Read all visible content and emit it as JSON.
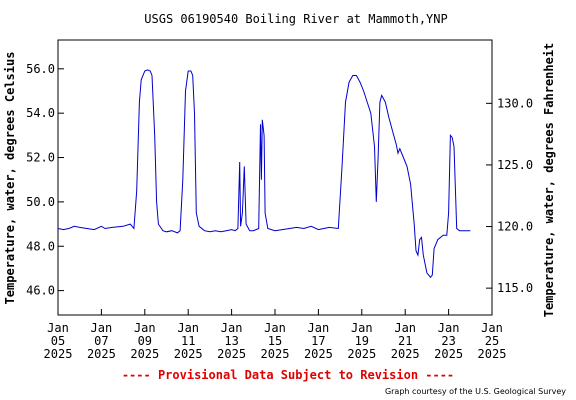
{
  "chart_data": {
    "type": "line",
    "title": "USGS 06190540 Boiling River at Mammoth,YNP",
    "ylabel_left": "Temperature, water, degrees Celsius",
    "ylabel_right": "Temperature, water, degrees Fahrenheit",
    "left_ylim": [
      44.9,
      57.3
    ],
    "right_ticks": [
      {
        "value": 115.0,
        "label": "115.0"
      },
      {
        "value": 120.0,
        "label": "120.0"
      },
      {
        "value": 125.0,
        "label": "125.0"
      },
      {
        "value": 130.0,
        "label": "130.0"
      }
    ],
    "left_ticks": [
      {
        "value": 46.0,
        "label": "46.0"
      },
      {
        "value": 48.0,
        "label": "48.0"
      },
      {
        "value": 50.0,
        "label": "50.0"
      },
      {
        "value": 52.0,
        "label": "52.0"
      },
      {
        "value": 54.0,
        "label": "54.0"
      },
      {
        "value": 56.0,
        "label": "56.0"
      }
    ],
    "xlim": [
      "2025-01-05",
      "2025-01-25"
    ],
    "x_ticks": [
      {
        "date": "2025-01-05",
        "month": "Jan",
        "day": "05",
        "year": "2025"
      },
      {
        "date": "2025-01-07",
        "month": "Jan",
        "day": "07",
        "year": "2025"
      },
      {
        "date": "2025-01-09",
        "month": "Jan",
        "day": "09",
        "year": "2025"
      },
      {
        "date": "2025-01-11",
        "month": "Jan",
        "day": "11",
        "year": "2025"
      },
      {
        "date": "2025-01-13",
        "month": "Jan",
        "day": "13",
        "year": "2025"
      },
      {
        "date": "2025-01-15",
        "month": "Jan",
        "day": "15",
        "year": "2025"
      },
      {
        "date": "2025-01-17",
        "month": "Jan",
        "day": "17",
        "year": "2025"
      },
      {
        "date": "2025-01-19",
        "month": "Jan",
        "day": "19",
        "year": "2025"
      },
      {
        "date": "2025-01-21",
        "month": "Jan",
        "day": "21",
        "year": "2025"
      },
      {
        "date": "2025-01-23",
        "month": "Jan",
        "day": "23",
        "year": "2025"
      },
      {
        "date": "2025-01-25",
        "month": "Jan",
        "day": "25",
        "year": "2025"
      }
    ],
    "series": [
      {
        "color": "#0000cc",
        "points": [
          [
            "2025-01-05T00:00",
            48.8
          ],
          [
            "2025-01-05T06:00",
            48.75
          ],
          [
            "2025-01-05T12:00",
            48.8
          ],
          [
            "2025-01-05T18:00",
            48.9
          ],
          [
            "2025-01-06T00:00",
            48.85
          ],
          [
            "2025-01-06T08:00",
            48.8
          ],
          [
            "2025-01-06T16:00",
            48.75
          ],
          [
            "2025-01-07T00:00",
            48.9
          ],
          [
            "2025-01-07T04:00",
            48.8
          ],
          [
            "2025-01-07T12:00",
            48.85
          ],
          [
            "2025-01-08T00:00",
            48.9
          ],
          [
            "2025-01-08T08:00",
            49.0
          ],
          [
            "2025-01-08T12:00",
            48.8
          ],
          [
            "2025-01-08T15:00",
            50.5
          ],
          [
            "2025-01-08T18:00",
            54.5
          ],
          [
            "2025-01-08T20:00",
            55.5
          ],
          [
            "2025-01-09T00:00",
            55.9
          ],
          [
            "2025-01-09T03:00",
            55.95
          ],
          [
            "2025-01-09T06:00",
            55.9
          ],
          [
            "2025-01-09T08:00",
            55.7
          ],
          [
            "2025-01-09T11:00",
            53.0
          ],
          [
            "2025-01-09T13:00",
            50.0
          ],
          [
            "2025-01-09T15:00",
            49.0
          ],
          [
            "2025-01-09T20:00",
            48.7
          ],
          [
            "2025-01-10T00:00",
            48.65
          ],
          [
            "2025-01-10T06:00",
            48.7
          ],
          [
            "2025-01-10T12:00",
            48.6
          ],
          [
            "2025-01-10T15:00",
            48.7
          ],
          [
            "2025-01-10T18:00",
            51.0
          ],
          [
            "2025-01-10T21:00",
            55.0
          ],
          [
            "2025-01-11T00:00",
            55.9
          ],
          [
            "2025-01-11T03:00",
            55.9
          ],
          [
            "2025-01-11T05:00",
            55.7
          ],
          [
            "2025-01-11T07:00",
            54.0
          ],
          [
            "2025-01-11T09:00",
            49.5
          ],
          [
            "2025-01-11T12:00",
            48.9
          ],
          [
            "2025-01-11T18:00",
            48.7
          ],
          [
            "2025-01-12T00:00",
            48.65
          ],
          [
            "2025-01-12T06:00",
            48.7
          ],
          [
            "2025-01-12T12:00",
            48.65
          ],
          [
            "2025-01-12T18:00",
            48.7
          ],
          [
            "2025-01-13T00:00",
            48.75
          ],
          [
            "2025-01-13T04:00",
            48.7
          ],
          [
            "2025-01-13T07:00",
            48.8
          ],
          [
            "2025-01-13T09:00",
            51.8
          ],
          [
            "2025-01-13T10:00",
            48.9
          ],
          [
            "2025-01-13T12:00",
            49.5
          ],
          [
            "2025-01-13T14:00",
            51.6
          ],
          [
            "2025-01-13T16:00",
            49.0
          ],
          [
            "2025-01-13T20:00",
            48.7
          ],
          [
            "2025-01-14T00:00",
            48.7
          ],
          [
            "2025-01-14T03:00",
            48.75
          ],
          [
            "2025-01-14T06:00",
            48.8
          ],
          [
            "2025-01-14T08:00",
            53.5
          ],
          [
            "2025-01-14T09:00",
            51.0
          ],
          [
            "2025-01-14T10:00",
            53.7
          ],
          [
            "2025-01-14T12:00",
            53.0
          ],
          [
            "2025-01-14T13:00",
            49.5
          ],
          [
            "2025-01-14T16:00",
            48.8
          ],
          [
            "2025-01-15T00:00",
            48.7
          ],
          [
            "2025-01-15T08:00",
            48.75
          ],
          [
            "2025-01-15T16:00",
            48.8
          ],
          [
            "2025-01-16T00:00",
            48.85
          ],
          [
            "2025-01-16T08:00",
            48.8
          ],
          [
            "2025-01-16T16:00",
            48.9
          ],
          [
            "2025-01-17T00:00",
            48.75
          ],
          [
            "2025-01-17T06:00",
            48.8
          ],
          [
            "2025-01-17T12:00",
            48.85
          ],
          [
            "2025-01-17T22:00",
            48.8
          ],
          [
            "2025-01-18T02:00",
            51.5
          ],
          [
            "2025-01-18T06:00",
            54.5
          ],
          [
            "2025-01-18T10:00",
            55.4
          ],
          [
            "2025-01-18T14:00",
            55.7
          ],
          [
            "2025-01-18T18:00",
            55.7
          ],
          [
            "2025-01-18T22:00",
            55.4
          ],
          [
            "2025-01-19T02:00",
            55.0
          ],
          [
            "2025-01-19T06:00",
            54.5
          ],
          [
            "2025-01-19T10:00",
            54.0
          ],
          [
            "2025-01-19T14:00",
            52.5
          ],
          [
            "2025-01-19T16:00",
            50.0
          ],
          [
            "2025-01-19T18:00",
            52.0
          ],
          [
            "2025-01-19T20:00",
            54.5
          ],
          [
            "2025-01-19T22:00",
            54.8
          ],
          [
            "2025-01-20T02:00",
            54.5
          ],
          [
            "2025-01-20T06:00",
            53.8
          ],
          [
            "2025-01-20T10:00",
            53.2
          ],
          [
            "2025-01-20T14:00",
            52.6
          ],
          [
            "2025-01-20T16:00",
            52.2
          ],
          [
            "2025-01-20T18:00",
            52.4
          ],
          [
            "2025-01-20T22:00",
            52.0
          ],
          [
            "2025-01-21T02:00",
            51.6
          ],
          [
            "2025-01-21T06:00",
            50.8
          ],
          [
            "2025-01-21T10:00",
            49.0
          ],
          [
            "2025-01-21T12:00",
            47.8
          ],
          [
            "2025-01-21T14:00",
            47.6
          ],
          [
            "2025-01-21T16:00",
            48.3
          ],
          [
            "2025-01-21T18:00",
            48.4
          ],
          [
            "2025-01-21T20:00",
            47.6
          ],
          [
            "2025-01-22T00:00",
            46.8
          ],
          [
            "2025-01-22T04:00",
            46.6
          ],
          [
            "2025-01-22T06:00",
            46.7
          ],
          [
            "2025-01-22T08:00",
            47.9
          ],
          [
            "2025-01-22T12:00",
            48.3
          ],
          [
            "2025-01-22T18:00",
            48.5
          ],
          [
            "2025-01-22T22:00",
            48.5
          ],
          [
            "2025-01-23T00:00",
            49.5
          ],
          [
            "2025-01-23T02:00",
            53.0
          ],
          [
            "2025-01-23T04:00",
            52.9
          ],
          [
            "2025-01-23T06:00",
            52.5
          ],
          [
            "2025-01-23T09:00",
            48.8
          ],
          [
            "2025-01-23T12:00",
            48.7
          ],
          [
            "2025-01-23T18:00",
            48.7
          ],
          [
            "2025-01-24T00:00",
            48.7
          ]
        ]
      }
    ],
    "grid": false,
    "legend": "none",
    "provisional_note": "---- Provisional Data Subject to Revision ----",
    "credit": "Graph courtesy of the U.S. Geological Survey"
  }
}
